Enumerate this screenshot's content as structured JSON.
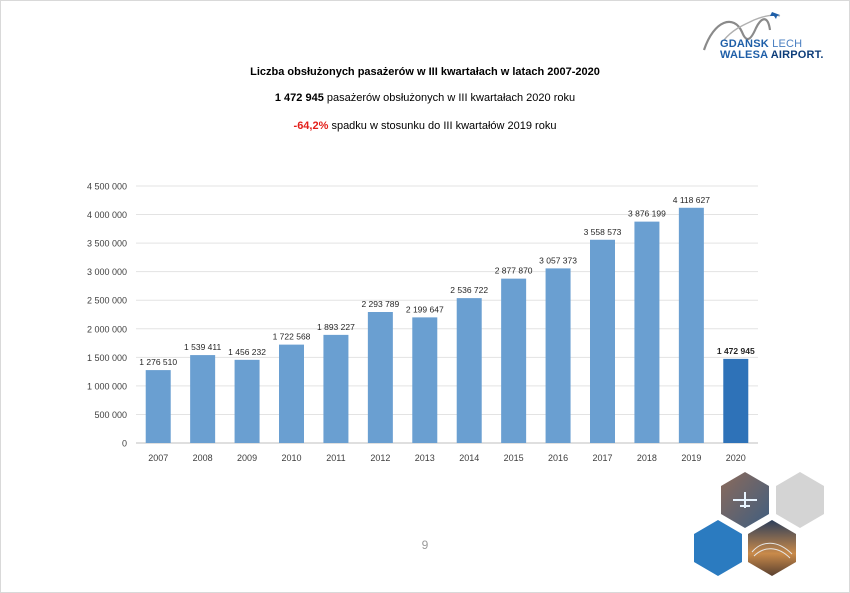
{
  "header": {
    "title": "Liczba obsłużonych pasażerów w III kwartałach w latach 2007-2020",
    "subtitle_value": "1 472 945",
    "subtitle_rest": " pasażerów obsłużonych w III kwartałach 2020 roku",
    "change_value": "-64,2%",
    "change_rest": " spadku w stosunku do III kwartałów 2019 roku"
  },
  "logo": {
    "line1_a": "GDANSK",
    "line1_b": " LECH",
    "line2_a": "WALESA ",
    "line2_b": "AIRPORT."
  },
  "page_number": "9",
  "colors": {
    "bar": "#6a9fd1",
    "bar_highlight": "#2e72b8",
    "grid": "#e3e3e3",
    "negative": "#e3201b"
  },
  "chart_data": {
    "type": "bar",
    "categories": [
      "2007",
      "2008",
      "2009",
      "2010",
      "2011",
      "2012",
      "2013",
      "2014",
      "2015",
      "2016",
      "2017",
      "2018",
      "2019",
      "2020"
    ],
    "values": [
      1276510,
      1539411,
      1456232,
      1722568,
      1893227,
      2293789,
      2199647,
      2536722,
      2877870,
      3057373,
      3558573,
      3876199,
      4118627,
      1472945
    ],
    "data_labels": [
      "1 276 510",
      "1 539 411",
      "1 456 232",
      "1 722 568",
      "1 893 227",
      "2 293 789",
      "2 199 647",
      "2 536 722",
      "2 877 870",
      "3 057 373",
      "3 558 573",
      "3 876 199",
      "4 118 627",
      "1 472 945"
    ],
    "highlight_category": "2020",
    "ylim": [
      0,
      4500000
    ],
    "yticks": [
      0,
      500000,
      1000000,
      1500000,
      2000000,
      2500000,
      3000000,
      3500000,
      4000000,
      4500000
    ],
    "ytick_labels": [
      "0",
      "500 000",
      "1 000 000",
      "1 500 000",
      "2 000 000",
      "2 500 000",
      "3 000 000",
      "3 500 000",
      "4 000 000",
      "4 500 000"
    ],
    "grid": true,
    "legend": "none"
  }
}
